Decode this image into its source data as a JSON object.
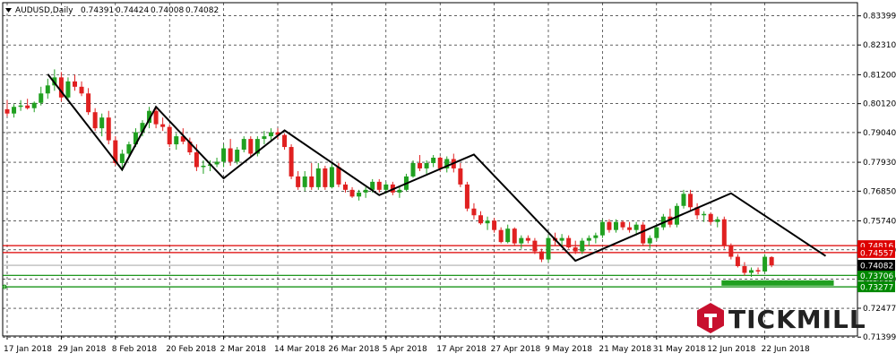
{
  "info": {
    "symbol_label": "AUDUSD,Daily",
    "open": "0.74391",
    "high": "0.74424",
    "low": "0.74008",
    "close": "0.74082"
  },
  "brand": {
    "name": "TICKMILL"
  },
  "chart_data": {
    "type": "candlestick",
    "title": "AUDUSD,Daily",
    "ylim": [
      0.7144,
      0.8389
    ],
    "grid": true,
    "price_ticks": [
      "0.83399",
      "0.82310",
      "0.81200",
      "0.80120",
      "0.79040",
      "0.77930",
      "0.76850",
      "0.75740",
      "0.74660",
      "0.73570",
      "0.72477",
      "0.71399"
    ],
    "date_ticks": [
      "17 Jan 2018",
      "29 Jan 2018",
      "8 Feb 2018",
      "20 Feb 2018",
      "2 Mar 2018",
      "14 Mar 2018",
      "26 Mar 2018",
      "5 Apr 2018",
      "17 Apr 2018",
      "27 Apr 2018",
      "9 May 2018",
      "21 May 2018",
      "31 May 2018",
      "12 Jun 2018",
      "22 Jun 2018"
    ],
    "date_tick_index": [
      0,
      8,
      16,
      24,
      32,
      40,
      48,
      56,
      64,
      72,
      80,
      88,
      96,
      104,
      112
    ],
    "candles_ohlc": [
      [
        0.7991,
        0.8025,
        0.7965,
        0.7975
      ],
      [
        0.7975,
        0.801,
        0.796,
        0.8
      ],
      [
        0.8,
        0.8025,
        0.7985,
        0.8005
      ],
      [
        0.8005,
        0.803,
        0.799,
        0.7995
      ],
      [
        0.7995,
        0.802,
        0.798,
        0.8015
      ],
      [
        0.8015,
        0.8075,
        0.8005,
        0.805
      ],
      [
        0.805,
        0.8105,
        0.803,
        0.808
      ],
      [
        0.808,
        0.814,
        0.806,
        0.811
      ],
      [
        0.811,
        0.813,
        0.802,
        0.8035
      ],
      [
        0.8035,
        0.811,
        0.8025,
        0.8095
      ],
      [
        0.8095,
        0.812,
        0.806,
        0.8075
      ],
      [
        0.8075,
        0.8095,
        0.804,
        0.805
      ],
      [
        0.805,
        0.807,
        0.797,
        0.798
      ],
      [
        0.798,
        0.7995,
        0.791,
        0.792
      ],
      [
        0.792,
        0.7975,
        0.789,
        0.796
      ],
      [
        0.796,
        0.7985,
        0.786,
        0.7875
      ],
      [
        0.7875,
        0.789,
        0.778,
        0.779
      ],
      [
        0.779,
        0.784,
        0.776,
        0.7825
      ],
      [
        0.7825,
        0.787,
        0.781,
        0.786
      ],
      [
        0.786,
        0.792,
        0.785,
        0.7905
      ],
      [
        0.7905,
        0.795,
        0.789,
        0.794
      ],
      [
        0.794,
        0.8,
        0.792,
        0.7985
      ],
      [
        0.7985,
        0.8,
        0.792,
        0.7935
      ],
      [
        0.7935,
        0.796,
        0.791,
        0.7925
      ],
      [
        0.7925,
        0.7935,
        0.785,
        0.786
      ],
      [
        0.786,
        0.79,
        0.784,
        0.789
      ],
      [
        0.789,
        0.792,
        0.786,
        0.787
      ],
      [
        0.787,
        0.7885,
        0.782,
        0.783
      ],
      [
        0.783,
        0.786,
        0.776,
        0.7775
      ],
      [
        0.7775,
        0.78,
        0.775,
        0.778
      ],
      [
        0.778,
        0.78,
        0.776,
        0.7785
      ],
      [
        0.7785,
        0.781,
        0.7775,
        0.7795
      ],
      [
        0.7795,
        0.786,
        0.7775,
        0.7845
      ],
      [
        0.7845,
        0.788,
        0.778,
        0.7795
      ],
      [
        0.7795,
        0.785,
        0.7785,
        0.784
      ],
      [
        0.784,
        0.789,
        0.783,
        0.788
      ],
      [
        0.788,
        0.789,
        0.7815,
        0.7825
      ],
      [
        0.7825,
        0.789,
        0.7815,
        0.788
      ],
      [
        0.788,
        0.791,
        0.786,
        0.789
      ],
      [
        0.789,
        0.792,
        0.787,
        0.7905
      ],
      [
        0.7905,
        0.792,
        0.788,
        0.7895
      ],
      [
        0.7895,
        0.79,
        0.784,
        0.785
      ],
      [
        0.785,
        0.786,
        0.773,
        0.774
      ],
      [
        0.774,
        0.776,
        0.769,
        0.77
      ],
      [
        0.77,
        0.776,
        0.7685,
        0.774
      ],
      [
        0.774,
        0.779,
        0.769,
        0.77
      ],
      [
        0.77,
        0.779,
        0.769,
        0.777
      ],
      [
        0.777,
        0.778,
        0.769,
        0.77
      ],
      [
        0.77,
        0.779,
        0.7695,
        0.7775
      ],
      [
        0.7775,
        0.779,
        0.77,
        0.771
      ],
      [
        0.771,
        0.772,
        0.768,
        0.769
      ],
      [
        0.769,
        0.77,
        0.766,
        0.7665
      ],
      [
        0.7665,
        0.769,
        0.765,
        0.768
      ],
      [
        0.768,
        0.77,
        0.766,
        0.769
      ],
      [
        0.769,
        0.773,
        0.768,
        0.772
      ],
      [
        0.772,
        0.773,
        0.768,
        0.769
      ],
      [
        0.769,
        0.772,
        0.7675,
        0.771
      ],
      [
        0.771,
        0.772,
        0.767,
        0.768
      ],
      [
        0.768,
        0.77,
        0.766,
        0.769
      ],
      [
        0.769,
        0.775,
        0.7685,
        0.774
      ],
      [
        0.774,
        0.78,
        0.7735,
        0.779
      ],
      [
        0.779,
        0.782,
        0.776,
        0.777
      ],
      [
        0.777,
        0.78,
        0.775,
        0.779
      ],
      [
        0.779,
        0.782,
        0.7775,
        0.781
      ],
      [
        0.781,
        0.7815,
        0.776,
        0.777
      ],
      [
        0.777,
        0.7815,
        0.7755,
        0.7805
      ],
      [
        0.7805,
        0.7825,
        0.7755,
        0.777
      ],
      [
        0.777,
        0.779,
        0.77,
        0.771
      ],
      [
        0.771,
        0.772,
        0.761,
        0.762
      ],
      [
        0.762,
        0.764,
        0.758,
        0.7595
      ],
      [
        0.7595,
        0.761,
        0.756,
        0.7565
      ],
      [
        0.7565,
        0.759,
        0.754,
        0.7575
      ],
      [
        0.7575,
        0.7585,
        0.753,
        0.754
      ],
      [
        0.754,
        0.755,
        0.749,
        0.7495
      ],
      [
        0.7495,
        0.756,
        0.749,
        0.7545
      ],
      [
        0.7545,
        0.755,
        0.748,
        0.749
      ],
      [
        0.749,
        0.752,
        0.747,
        0.751
      ],
      [
        0.751,
        0.752,
        0.749,
        0.75
      ],
      [
        0.75,
        0.751,
        0.745,
        0.746
      ],
      [
        0.746,
        0.747,
        0.742,
        0.743
      ],
      [
        0.743,
        0.752,
        0.742,
        0.751
      ],
      [
        0.751,
        0.753,
        0.748,
        0.75
      ],
      [
        0.75,
        0.7525,
        0.748,
        0.751
      ],
      [
        0.751,
        0.752,
        0.747,
        0.7475
      ],
      [
        0.7475,
        0.75,
        0.745,
        0.746
      ],
      [
        0.746,
        0.751,
        0.745,
        0.75
      ],
      [
        0.75,
        0.752,
        0.748,
        0.751
      ],
      [
        0.751,
        0.753,
        0.749,
        0.752
      ],
      [
        0.752,
        0.758,
        0.751,
        0.757
      ],
      [
        0.757,
        0.758,
        0.753,
        0.754
      ],
      [
        0.754,
        0.758,
        0.753,
        0.757
      ],
      [
        0.757,
        0.7575,
        0.754,
        0.755
      ],
      [
        0.755,
        0.757,
        0.753,
        0.754
      ],
      [
        0.754,
        0.757,
        0.752,
        0.756
      ],
      [
        0.756,
        0.757,
        0.748,
        0.749
      ],
      [
        0.749,
        0.752,
        0.747,
        0.751
      ],
      [
        0.751,
        0.756,
        0.75,
        0.755
      ],
      [
        0.755,
        0.76,
        0.754,
        0.759
      ],
      [
        0.759,
        0.762,
        0.755,
        0.756
      ],
      [
        0.756,
        0.764,
        0.755,
        0.763
      ],
      [
        0.763,
        0.769,
        0.762,
        0.7675
      ],
      [
        0.7675,
        0.769,
        0.761,
        0.7625
      ],
      [
        0.7625,
        0.764,
        0.758,
        0.7595
      ],
      [
        0.7595,
        0.761,
        0.757,
        0.76
      ],
      [
        0.76,
        0.7605,
        0.756,
        0.757
      ],
      [
        0.757,
        0.759,
        0.755,
        0.758
      ],
      [
        0.758,
        0.759,
        0.747,
        0.748
      ],
      [
        0.748,
        0.749,
        0.743,
        0.744
      ],
      [
        0.744,
        0.745,
        0.74,
        0.7405
      ],
      [
        0.7405,
        0.742,
        0.737,
        0.738
      ],
      [
        0.738,
        0.74,
        0.7365,
        0.739
      ],
      [
        0.739,
        0.74,
        0.7375,
        0.7385
      ],
      [
        0.7385,
        0.745,
        0.738,
        0.744
      ],
      [
        0.7439,
        0.7442,
        0.7401,
        0.7408
      ]
    ],
    "zigzag": [
      [
        6,
        0.8122
      ],
      [
        17,
        0.7765
      ],
      [
        22,
        0.8
      ],
      [
        32,
        0.7733
      ],
      [
        41,
        0.7912
      ],
      [
        55,
        0.767
      ],
      [
        69,
        0.7822
      ],
      [
        84,
        0.7425
      ],
      [
        107,
        0.7677
      ],
      [
        121,
        0.7443
      ]
    ],
    "levels": [
      {
        "price": 0.74816,
        "label": "0.74816",
        "color": "#dd0000"
      },
      {
        "price": 0.74557,
        "label": "0.74557",
        "color": "#dd0000"
      },
      {
        "price": 0.73706,
        "label": "0.73706",
        "color": "#008800"
      },
      {
        "price": 0.73277,
        "label": "0.73277",
        "color": "#008800"
      }
    ],
    "current_price": {
      "price": 0.74082,
      "label": "0.74082"
    },
    "support_zone": {
      "from_index": 106,
      "to_index": 121,
      "price": 0.7342
    },
    "colors": {
      "bull": "#20a020",
      "bear": "#e02020",
      "zigzag": "#000000",
      "grid": "#000000"
    }
  }
}
